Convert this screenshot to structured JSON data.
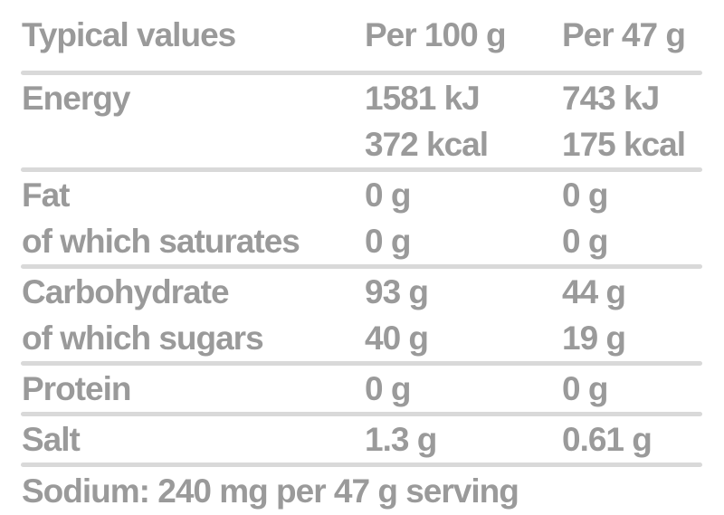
{
  "nutrition_table": {
    "header": {
      "label": "Typical values",
      "per100": "Per 100 g",
      "per47": "Per 47 g"
    },
    "rows": [
      {
        "label": "Energy",
        "per100": "1581 kJ",
        "per47": "743 kJ"
      },
      {
        "label": "",
        "per100": "372 kcal",
        "per47": "175 kcal"
      },
      {
        "label": "Fat",
        "per100": "0 g",
        "per47": "0 g"
      },
      {
        "label": "of which saturates",
        "per100": "0 g",
        "per47": "0 g"
      },
      {
        "label": "Carbohydrate",
        "per100": "93 g",
        "per47": "44 g"
      },
      {
        "label": "of which sugars",
        "per100": "40 g",
        "per47": "19 g"
      },
      {
        "label": "Protein",
        "per100": "0 g",
        "per47": "0 g"
      },
      {
        "label": "Salt",
        "per100": "1.3 g",
        "per47": "0.61 g"
      }
    ],
    "footer_note": "Sodium: 240 mg per 47 g serving"
  },
  "colors": {
    "text": "#9a9a9a",
    "divider": "#d9d9d9",
    "background": "#ffffff"
  }
}
